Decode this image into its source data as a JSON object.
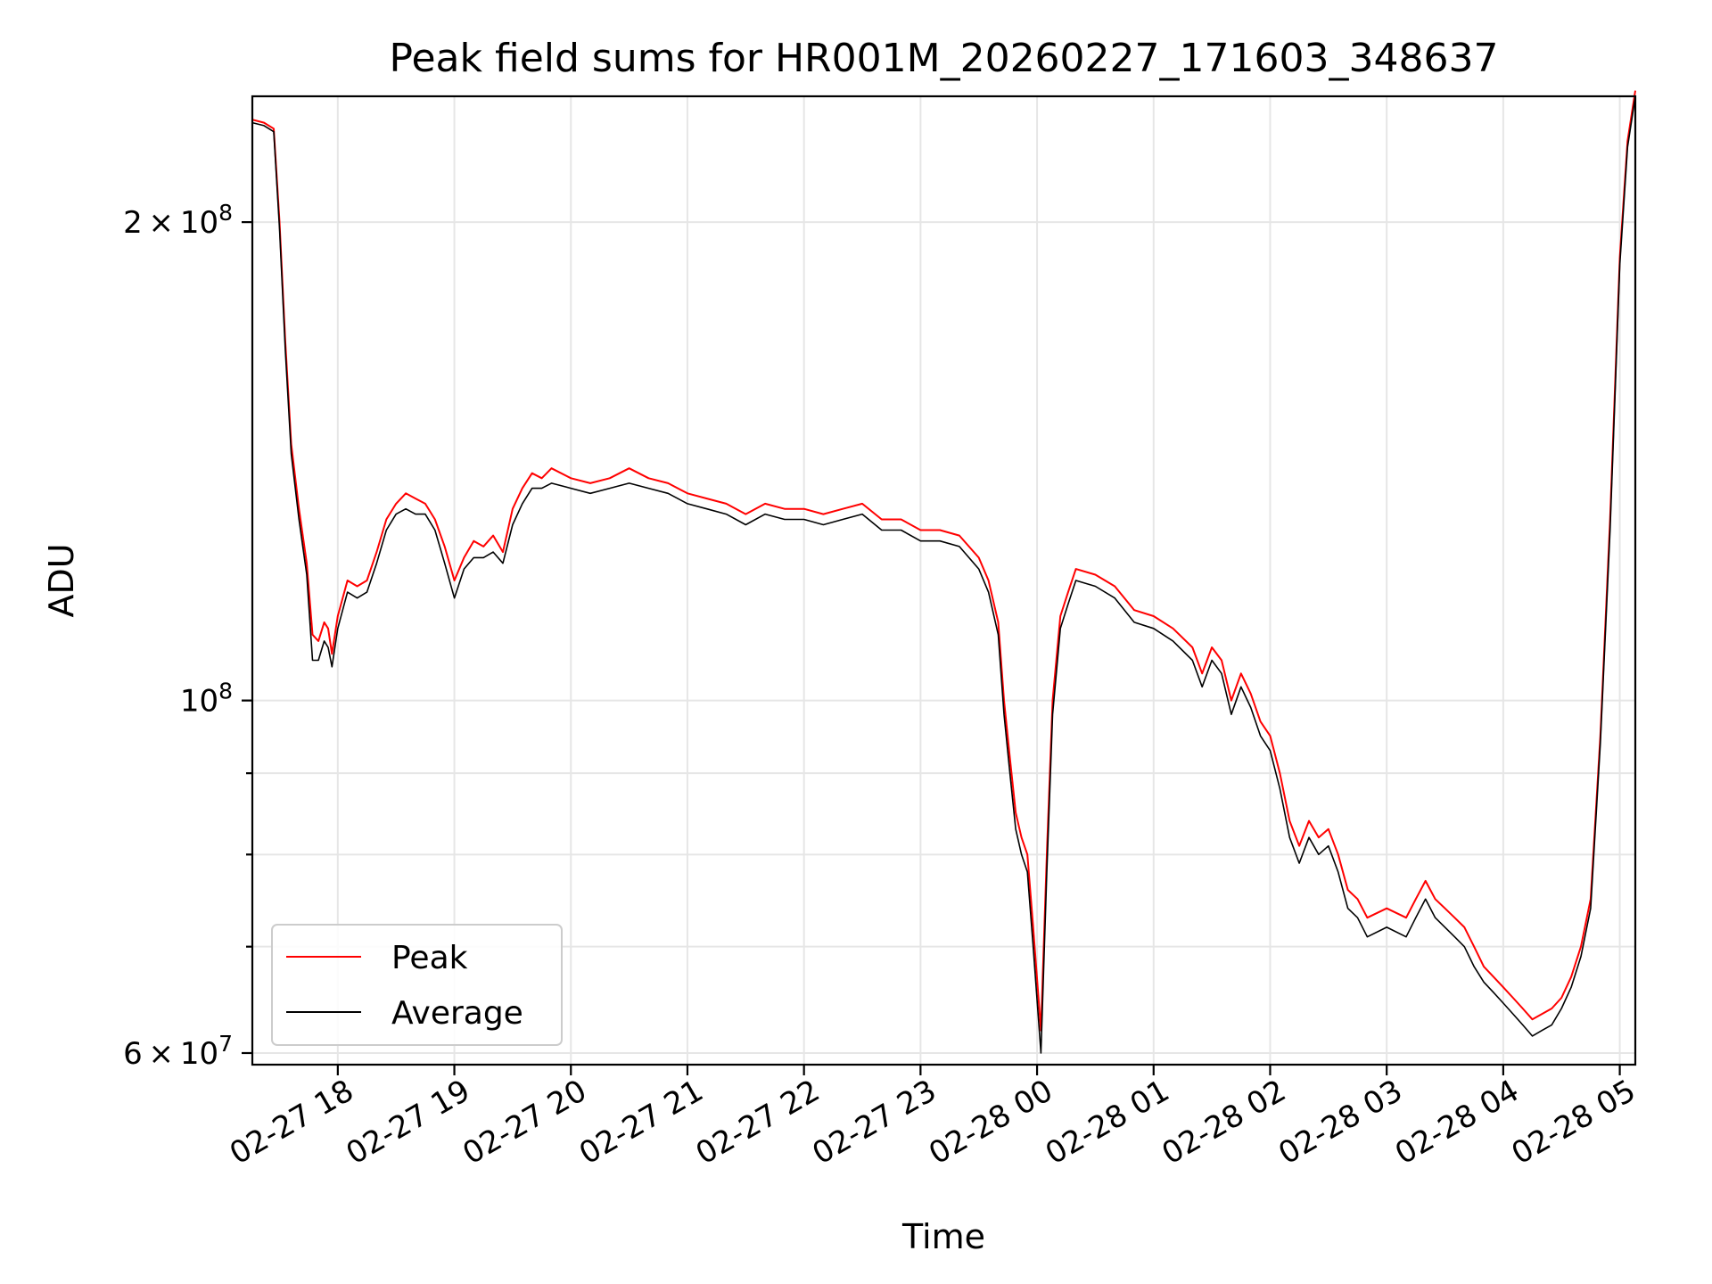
{
  "chart_data": {
    "type": "line",
    "title": "Peak field sums for HR001M_20260227_171603_348637",
    "xlabel": "Time",
    "ylabel": "ADU",
    "yscale": "log",
    "xlim": [
      "02-27 17:16",
      "02-28 05:08"
    ],
    "ylim": [
      59000000,
      240000000
    ],
    "grid": true,
    "legend_position": "lower-left",
    "x_ticks": [
      "02-27 18",
      "02-27 19",
      "02-27 20",
      "02-27 21",
      "02-27 22",
      "02-27 23",
      "02-28 00",
      "02-28 01",
      "02-28 02",
      "02-28 03",
      "02-28 04",
      "02-28 05"
    ],
    "x_tick_values": [
      "02-27 18:00",
      "02-27 19:00",
      "02-27 20:00",
      "02-27 21:00",
      "02-27 22:00",
      "02-27 23:00",
      "02-28 00:00",
      "02-28 01:00",
      "02-28 02:00",
      "02-28 03:00",
      "02-28 04:00",
      "02-28 05:00"
    ],
    "y_major_ticks": [
      {
        "value": 60000000,
        "mantissa": "6",
        "exponent": "7"
      },
      {
        "value": 100000000,
        "mantissa": "",
        "exponent": "8"
      },
      {
        "value": 200000000,
        "mantissa": "2",
        "exponent": "8"
      }
    ],
    "y_minor_gridlines": [
      70000000,
      80000000,
      90000000
    ],
    "series": [
      {
        "name": "Peak",
        "color": "#ff0000",
        "x": [
          "02-27 17:16",
          "02-27 17:22",
          "02-27 17:27",
          "02-27 17:30",
          "02-27 17:33",
          "02-27 17:36",
          "02-27 17:40",
          "02-27 17:44",
          "02-27 17:47",
          "02-27 17:50",
          "02-27 17:53",
          "02-27 17:55",
          "02-27 17:57",
          "02-27 18:00",
          "02-27 18:05",
          "02-27 18:10",
          "02-27 18:15",
          "02-27 18:20",
          "02-27 18:25",
          "02-27 18:30",
          "02-27 18:35",
          "02-27 18:40",
          "02-27 18:45",
          "02-27 18:50",
          "02-27 18:55",
          "02-27 19:00",
          "02-27 19:05",
          "02-27 19:10",
          "02-27 19:15",
          "02-27 19:20",
          "02-27 19:25",
          "02-27 19:30",
          "02-27 19:35",
          "02-27 19:40",
          "02-27 19:45",
          "02-27 19:50",
          "02-27 20:00",
          "02-27 20:10",
          "02-27 20:20",
          "02-27 20:30",
          "02-27 20:40",
          "02-27 20:50",
          "02-27 21:00",
          "02-27 21:10",
          "02-27 21:20",
          "02-27 21:30",
          "02-27 21:40",
          "02-27 21:50",
          "02-27 22:00",
          "02-27 22:10",
          "02-27 22:20",
          "02-27 22:30",
          "02-27 22:40",
          "02-27 22:50",
          "02-27 23:00",
          "02-27 23:10",
          "02-27 23:20",
          "02-27 23:30",
          "02-27 23:35",
          "02-27 23:40",
          "02-27 23:43",
          "02-27 23:46",
          "02-27 23:49",
          "02-27 23:52",
          "02-27 23:55",
          "02-27 23:58",
          "02-28 00:02",
          "02-28 00:05",
          "02-28 00:08",
          "02-28 00:12",
          "02-28 00:16",
          "02-28 00:20",
          "02-28 00:30",
          "02-28 00:40",
          "02-28 00:50",
          "02-28 01:00",
          "02-28 01:10",
          "02-28 01:20",
          "02-28 01:25",
          "02-28 01:30",
          "02-28 01:35",
          "02-28 01:40",
          "02-28 01:45",
          "02-28 01:50",
          "02-28 01:55",
          "02-28 02:00",
          "02-28 02:05",
          "02-28 02:10",
          "02-28 02:15",
          "02-28 02:20",
          "02-28 02:25",
          "02-28 02:30",
          "02-28 02:35",
          "02-28 02:40",
          "02-28 02:45",
          "02-28 02:50",
          "02-28 03:00",
          "02-28 03:10",
          "02-28 03:15",
          "02-28 03:20",
          "02-28 03:25",
          "02-28 03:30",
          "02-28 03:35",
          "02-28 03:40",
          "02-28 03:45",
          "02-28 03:50",
          "02-28 03:55",
          "02-28 04:00",
          "02-28 04:05",
          "02-28 04:10",
          "02-28 04:15",
          "02-28 04:20",
          "02-28 04:25",
          "02-28 04:30",
          "02-28 04:35",
          "02-28 04:40",
          "02-28 04:45",
          "02-28 04:50",
          "02-28 04:55",
          "02-28 05:00",
          "02-28 05:04",
          "02-28 05:08"
        ],
        "y": [
          232000000,
          231000000,
          229000000,
          200000000,
          168000000,
          145000000,
          132000000,
          122000000,
          110000000,
          109000000,
          112000000,
          111000000,
          107000000,
          113000000,
          119000000,
          118000000,
          119000000,
          124000000,
          130000000,
          133000000,
          135000000,
          134000000,
          133000000,
          130000000,
          125000000,
          119000000,
          123000000,
          126000000,
          125000000,
          127000000,
          124000000,
          132000000,
          136000000,
          139000000,
          138000000,
          140000000,
          138000000,
          137000000,
          138000000,
          140000000,
          138000000,
          137000000,
          135000000,
          134000000,
          133000000,
          131000000,
          133000000,
          132000000,
          132000000,
          131000000,
          132000000,
          133000000,
          130000000,
          130000000,
          128000000,
          128000000,
          127000000,
          123000000,
          119000000,
          112000000,
          100000000,
          92000000,
          85000000,
          82000000,
          80000000,
          72000000,
          62000000,
          80000000,
          100000000,
          113000000,
          117000000,
          121000000,
          120000000,
          118000000,
          114000000,
          113000000,
          111000000,
          108000000,
          104000000,
          108000000,
          106000000,
          100000000,
          104000000,
          101000000,
          97000000,
          95000000,
          90000000,
          84000000,
          81000000,
          84000000,
          82000000,
          83000000,
          80000000,
          76000000,
          75000000,
          73000000,
          74000000,
          73000000,
          75000000,
          77000000,
          75000000,
          74000000,
          73000000,
          72000000,
          70000000,
          68000000,
          67000000,
          66000000,
          65000000,
          64000000,
          63000000,
          63500000,
          64000000,
          65000000,
          67000000,
          70000000,
          75000000,
          95000000,
          130000000,
          190000000,
          225000000,
          242000000
        ]
      },
      {
        "name": "Average",
        "color": "#000000",
        "x": [
          "02-27 17:16",
          "02-27 17:22",
          "02-27 17:27",
          "02-27 17:30",
          "02-27 17:33",
          "02-27 17:36",
          "02-27 17:40",
          "02-27 17:44",
          "02-27 17:47",
          "02-27 17:50",
          "02-27 17:53",
          "02-27 17:55",
          "02-27 17:57",
          "02-27 18:00",
          "02-27 18:05",
          "02-27 18:10",
          "02-27 18:15",
          "02-27 18:20",
          "02-27 18:25",
          "02-27 18:30",
          "02-27 18:35",
          "02-27 18:40",
          "02-27 18:45",
          "02-27 18:50",
          "02-27 18:55",
          "02-27 19:00",
          "02-27 19:05",
          "02-27 19:10",
          "02-27 19:15",
          "02-27 19:20",
          "02-27 19:25",
          "02-27 19:30",
          "02-27 19:35",
          "02-27 19:40",
          "02-27 19:45",
          "02-27 19:50",
          "02-27 20:00",
          "02-27 20:10",
          "02-27 20:20",
          "02-27 20:30",
          "02-27 20:40",
          "02-27 20:50",
          "02-27 21:00",
          "02-27 21:10",
          "02-27 21:20",
          "02-27 21:30",
          "02-27 21:40",
          "02-27 21:50",
          "02-27 22:00",
          "02-27 22:10",
          "02-27 22:20",
          "02-27 22:30",
          "02-27 22:40",
          "02-27 22:50",
          "02-27 23:00",
          "02-27 23:10",
          "02-27 23:20",
          "02-27 23:30",
          "02-27 23:35",
          "02-27 23:40",
          "02-27 23:43",
          "02-27 23:46",
          "02-27 23:49",
          "02-27 23:52",
          "02-27 23:55",
          "02-27 23:58",
          "02-28 00:02",
          "02-28 00:05",
          "02-28 00:08",
          "02-28 00:12",
          "02-28 00:16",
          "02-28 00:20",
          "02-28 00:30",
          "02-28 00:40",
          "02-28 00:50",
          "02-28 01:00",
          "02-28 01:10",
          "02-28 01:20",
          "02-28 01:25",
          "02-28 01:30",
          "02-28 01:35",
          "02-28 01:40",
          "02-28 01:45",
          "02-28 01:50",
          "02-28 01:55",
          "02-28 02:00",
          "02-28 02:05",
          "02-28 02:10",
          "02-28 02:15",
          "02-28 02:20",
          "02-28 02:25",
          "02-28 02:30",
          "02-28 02:35",
          "02-28 02:40",
          "02-28 02:45",
          "02-28 02:50",
          "02-28 03:00",
          "02-28 03:10",
          "02-28 03:15",
          "02-28 03:20",
          "02-28 03:25",
          "02-28 03:30",
          "02-28 03:35",
          "02-28 03:40",
          "02-28 03:45",
          "02-28 03:50",
          "02-28 03:55",
          "02-28 04:00",
          "02-28 04:05",
          "02-28 04:10",
          "02-28 04:15",
          "02-28 04:20",
          "02-28 04:25",
          "02-28 04:30",
          "02-28 04:35",
          "02-28 04:40",
          "02-28 04:45",
          "02-28 04:50",
          "02-28 04:55",
          "02-28 05:00",
          "02-28 05:04",
          "02-28 05:08"
        ],
        "y": [
          231000000,
          230000000,
          228000000,
          198000000,
          166000000,
          143000000,
          130000000,
          120000000,
          106000000,
          106000000,
          109000000,
          108000000,
          105000000,
          111000000,
          117000000,
          116000000,
          117000000,
          122000000,
          128000000,
          131000000,
          132000000,
          131000000,
          131000000,
          128000000,
          122000000,
          116000000,
          121000000,
          123000000,
          123000000,
          124000000,
          122000000,
          129000000,
          133000000,
          136000000,
          136000000,
          137000000,
          136000000,
          135000000,
          136000000,
          137000000,
          136000000,
          135000000,
          133000000,
          132000000,
          131000000,
          129000000,
          131000000,
          130000000,
          130000000,
          129000000,
          130000000,
          131000000,
          128000000,
          128000000,
          126000000,
          126000000,
          125000000,
          121000000,
          117000000,
          110000000,
          98000000,
          90000000,
          83000000,
          80000000,
          78000000,
          70000000,
          60000000,
          78000000,
          98000000,
          111000000,
          115000000,
          119000000,
          118000000,
          116000000,
          112000000,
          111000000,
          109000000,
          106000000,
          102000000,
          106000000,
          104000000,
          98000000,
          102000000,
          99000000,
          95000000,
          93000000,
          88000000,
          82000000,
          79000000,
          82000000,
          80000000,
          81000000,
          78000000,
          74000000,
          73000000,
          71000000,
          72000000,
          71000000,
          73000000,
          75000000,
          73000000,
          72000000,
          71000000,
          70000000,
          68000000,
          66500000,
          65500000,
          64500000,
          63500000,
          62500000,
          61500000,
          62000000,
          62500000,
          64000000,
          66000000,
          69000000,
          74000000,
          94000000,
          128000000,
          188000000,
          223000000,
          240000000
        ]
      }
    ]
  }
}
